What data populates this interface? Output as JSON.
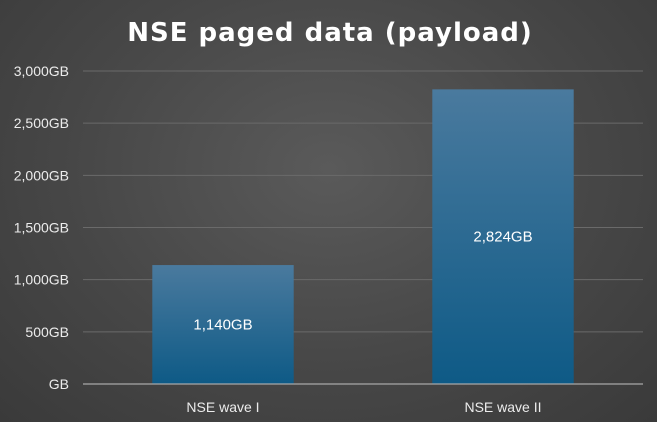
{
  "chart_data": {
    "type": "bar",
    "title": "NSE paged data (payload)",
    "categories": [
      "NSE wave I",
      "NSE wave II"
    ],
    "values": [
      1140,
      2824
    ],
    "data_labels": [
      "1,140GB",
      "2,824GB"
    ],
    "y_ticks": [
      0,
      500,
      1000,
      1500,
      2000,
      2500,
      3000
    ],
    "y_tick_labels": [
      "GB",
      "500GB",
      "1,000GB",
      "1,500GB",
      "2,000GB",
      "2,500GB",
      "3,000GB"
    ],
    "ylim": [
      0,
      3000
    ],
    "xlabel": "",
    "ylabel": "",
    "grid": true,
    "legend": "none",
    "colors": {
      "bar_top": "#4a7a9e",
      "bar_bottom": "#0e5a86"
    }
  }
}
